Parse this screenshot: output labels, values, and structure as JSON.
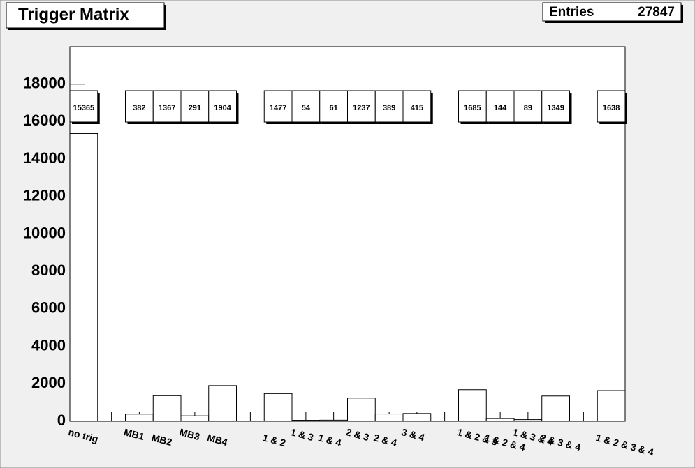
{
  "chart_data": {
    "type": "bar",
    "title": "Trigger Matrix",
    "stats_label": "Entries",
    "entries": 27847,
    "categories": [
      "no trig",
      null,
      "MB1",
      "MB2",
      "MB3",
      "MB4",
      null,
      "1 & 2",
      "1 & 3",
      "1 & 4",
      "2 & 3",
      "2 & 4",
      "3 & 4",
      null,
      "1 & 2 & 3",
      "1 & 2 & 4",
      "1 & 3 & 4",
      "2 & 3 & 4",
      null,
      "1 & 2 & 3 & 4"
    ],
    "values": [
      15365,
      0,
      382,
      1367,
      291,
      1904,
      0,
      1477,
      54,
      61,
      1237,
      389,
      415,
      0,
      1685,
      144,
      89,
      1349,
      0,
      1638
    ],
    "color": "#ffffff",
    "ylim": [
      0,
      20000
    ],
    "yticks": [
      0,
      2000,
      4000,
      6000,
      8000,
      10000,
      12000,
      14000,
      16000,
      18000
    ]
  }
}
